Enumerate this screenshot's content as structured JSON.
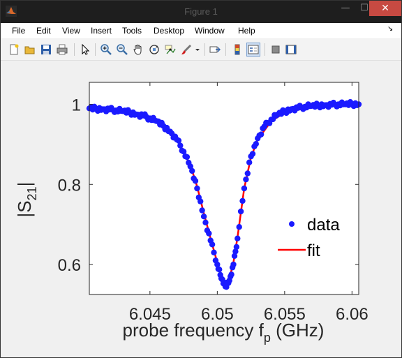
{
  "window": {
    "title": "Figure 1",
    "minimize_glyph": "—",
    "maximize_glyph": "☐",
    "close_glyph": "✕"
  },
  "menu": [
    "File",
    "Edit",
    "View",
    "Insert",
    "Tools",
    "Desktop",
    "Window",
    "Help"
  ],
  "dock_glyph": "↘",
  "toolbar_icons": [
    "new-figure-icon",
    "open-file-icon",
    "save-icon",
    "print-icon",
    "select-arrow-icon",
    "zoom-in-icon",
    "zoom-out-icon",
    "pan-hand-icon",
    "rotate-3d-icon",
    "data-cursor-icon",
    "brush-icon",
    "brush-dropdown-icon",
    "link-plot-icon",
    "colorbar-icon",
    "legend-icon",
    "hide-plot-tools-icon",
    "show-plot-tools-icon"
  ],
  "chart_data": {
    "type": "scatter",
    "xlim": [
      6.0405,
      6.0605
    ],
    "ylim": [
      0.525,
      1.055
    ],
    "xticks": [
      6.045,
      6.05,
      6.055,
      6.06
    ],
    "xtick_labels": [
      "6.045",
      "6.05",
      "6.055",
      "6.06"
    ],
    "yticks": [
      0.6,
      0.8,
      1.0
    ],
    "ytick_labels": [
      "0.6",
      "0.8",
      "1"
    ],
    "xlabel": "probe frequency f",
    "xlabel_sub": "p",
    "xlabel_unit": " (GHz)",
    "ylabel": "|S",
    "ylabel_sub": "21",
    "ylabel_end": "|",
    "legend": {
      "position": "bottom-right",
      "entries": [
        "data",
        "fit"
      ]
    },
    "colors": {
      "data": "#1a1aff",
      "fit": "#ff0000"
    },
    "series": [
      {
        "name": "data",
        "x": [
          6.0405,
          6.041,
          6.0415,
          6.042,
          6.0425,
          6.043,
          6.0435,
          6.044,
          6.0445,
          6.045,
          6.0455,
          6.046,
          6.0465,
          6.047,
          6.0475,
          6.048,
          6.0485,
          6.049,
          6.0495,
          6.05,
          6.0503,
          6.0506,
          6.0509,
          6.0512,
          6.0515,
          6.052,
          6.0525,
          6.053,
          6.0535,
          6.054,
          6.0545,
          6.055,
          6.0555,
          6.056,
          6.0565,
          6.057,
          6.0575,
          6.058,
          6.0585,
          6.059,
          6.0595,
          6.06,
          6.0605
        ],
        "y": [
          0.99,
          0.989,
          0.988,
          0.987,
          0.985,
          0.983,
          0.98,
          0.975,
          0.972,
          0.965,
          0.958,
          0.946,
          0.932,
          0.912,
          0.882,
          0.845,
          0.79,
          0.72,
          0.66,
          0.6,
          0.565,
          0.545,
          0.56,
          0.6,
          0.665,
          0.79,
          0.87,
          0.915,
          0.945,
          0.962,
          0.975,
          0.982,
          0.988,
          0.991,
          0.994,
          0.996,
          0.997,
          0.998,
          0.999,
          1.0,
          1.0,
          1.001,
          1.0
        ]
      },
      {
        "name": "fit",
        "x": [
          6.0405,
          6.042,
          6.044,
          6.046,
          6.047,
          6.048,
          6.0485,
          6.049,
          6.0495,
          6.05,
          6.0503,
          6.0506,
          6.0509,
          6.0512,
          6.0515,
          6.052,
          6.0525,
          6.053,
          6.054,
          6.055,
          6.057,
          6.059,
          6.0605
        ],
        "y": [
          0.99,
          0.987,
          0.977,
          0.948,
          0.914,
          0.848,
          0.795,
          0.728,
          0.665,
          0.605,
          0.57,
          0.553,
          0.565,
          0.605,
          0.668,
          0.79,
          0.868,
          0.912,
          0.958,
          0.979,
          0.994,
          0.999,
          1.0
        ]
      }
    ]
  }
}
